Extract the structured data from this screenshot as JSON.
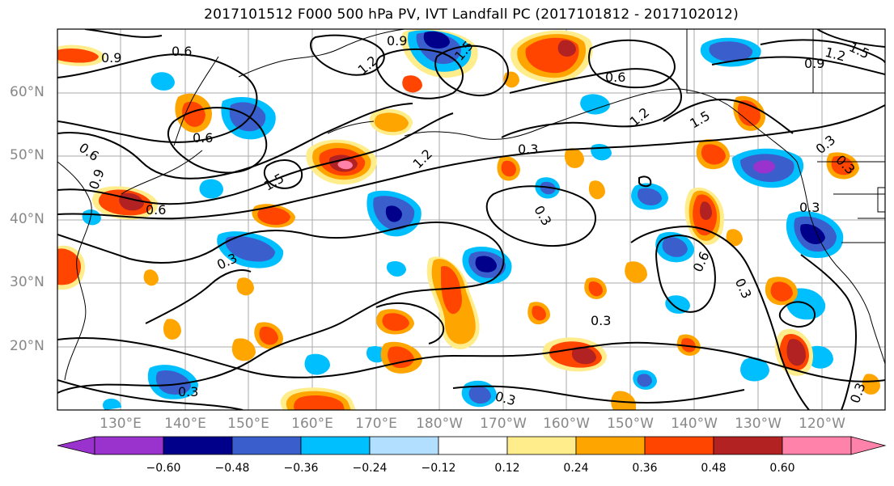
{
  "title": "2017101512 F000 500 hPa PV, IVT Landfall PC (2017101812 - 2017102012)",
  "map": {
    "lat_labels": [
      "60°N",
      "50°N",
      "40°N",
      "30°N",
      "20°N"
    ],
    "lon_labels": [
      "130°E",
      "140°E",
      "150°E",
      "160°E",
      "170°E",
      "180°W",
      "170°W",
      "160°W",
      "150°W",
      "140°W",
      "130°W",
      "120°W"
    ],
    "contour_labels": [
      "0.9",
      "0.6",
      "0.9",
      "1.2",
      "1.5",
      "0.6",
      "0.9",
      "1.2",
      "1.5",
      "0.6",
      "0.6",
      "0.9",
      "1.2",
      "1.5",
      "1.2",
      "1.5",
      "0.6",
      "0.3",
      "0.3",
      "0.3",
      "0.3",
      "0.3",
      "0.6",
      "0.3",
      "0.3",
      "0.3",
      "0.3",
      "0.3",
      "0.3"
    ]
  },
  "colorbar": {
    "colors": [
      "#9a32cd",
      "#00008b",
      "#3a5fcd",
      "#00bfff",
      "#b2dfff",
      "#ffffff",
      "#ffec8b",
      "#ffa500",
      "#ff4500",
      "#b22222",
      "#ff82ab"
    ],
    "tick_labels": [
      "−0.60",
      "−0.48",
      "−0.36",
      "−0.24",
      "−0.12",
      "0.12",
      "0.24",
      "0.36",
      "0.48",
      "0.60"
    ]
  }
}
